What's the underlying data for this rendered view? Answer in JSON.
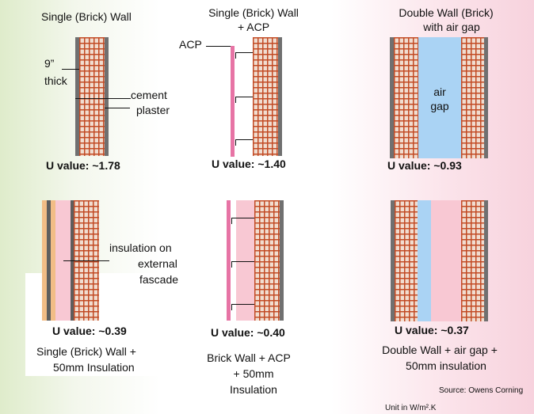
{
  "panels": {
    "p1": {
      "title": "Single (Brick) Wall",
      "thickness_label_1": "9”",
      "thickness_label_2": "thick",
      "plaster_label_1": "cement",
      "plaster_label_2": "plaster",
      "u_value": "U value: ~1.78"
    },
    "p2": {
      "title_1": "Single (Brick) Wall",
      "title_2": "+ ACP",
      "acp_label": "ACP",
      "u_value": "U value: ~1.40"
    },
    "p3": {
      "title_1": "Double Wall (Brick)",
      "title_2": "with air gap",
      "air_label_1": "air",
      "air_label_2": "gap",
      "u_value": "U value: ~0.93"
    },
    "p4": {
      "insul_label_1": "insulation on",
      "insul_label_2": "external",
      "insul_label_3": "fascade",
      "u_value": "U value: ~0.39",
      "caption_1": "Single (Brick) Wall +",
      "caption_2": "50mm Insulation"
    },
    "p5": {
      "u_value": "U value: ~0.40",
      "caption_1": "Brick Wall + ACP",
      "caption_2": "+ 50mm",
      "caption_3": "Insulation"
    },
    "p6": {
      "u_value": "U value: ~0.37",
      "caption_1": "Double Wall + air gap +",
      "caption_2": "50mm insulation"
    }
  },
  "source": "Source: Owens Corning",
  "unit_note": "Unit in W/m².K",
  "colors": {
    "brick": "#c24a24",
    "plaster": "#707070",
    "acp": "#e774a5",
    "air_gap": "#aad3f4",
    "insulation": "#f8c8d3"
  }
}
